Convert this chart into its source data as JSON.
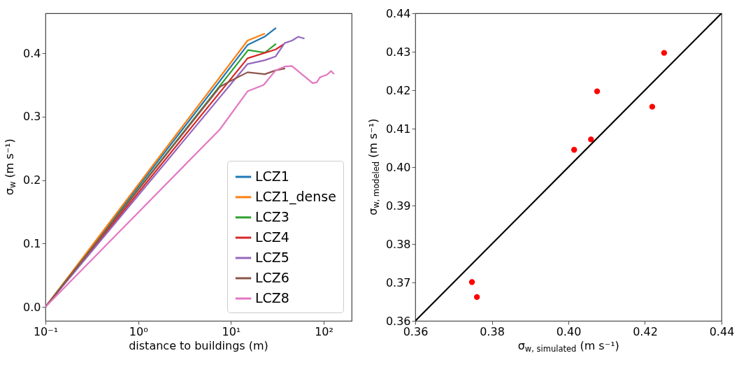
{
  "chart_data": [
    {
      "type": "line",
      "xlabel": "distance to buildings (m)",
      "ylabel": "σ$_{w}$ (m s⁻¹)",
      "log": "x",
      "xlim": [
        0.1,
        200
      ],
      "ylim": [
        -0.022,
        0.463
      ],
      "xticks": [
        {
          "value": 0.1,
          "label": "10⁻¹"
        },
        {
          "value": 1,
          "label": "10⁰"
        },
        {
          "value": 10,
          "label": "10¹"
        },
        {
          "value": 100,
          "label": "10²"
        }
      ],
      "yticks": [
        {
          "value": 0,
          "label": "0.0"
        },
        0.1,
        0.2,
        0.3,
        0.4
      ],
      "legend": "bottom right",
      "series": [
        {
          "name": "LCZ1",
          "color": "#1f77b4",
          "x": [
            0.1,
            15.1,
            23,
            30.6
          ],
          "values": [
            0,
            0.413,
            0.426,
            0.44
          ]
        },
        {
          "name": "LCZ1_dense",
          "color": "#ff7f0e",
          "x": [
            0.1,
            15.1,
            23.2
          ],
          "values": [
            0,
            0.42,
            0.431
          ]
        },
        {
          "name": "LCZ3",
          "color": "#2ca02c",
          "x": [
            0.1,
            15.3,
            23.2,
            30.6
          ],
          "values": [
            0,
            0.405,
            0.401,
            0.415
          ]
        },
        {
          "name": "LCZ4",
          "color": "#d62728",
          "x": [
            0.1,
            15.1,
            30.3,
            36.8
          ],
          "values": [
            0,
            0.392,
            0.406,
            0.414
          ]
        },
        {
          "name": "LCZ5",
          "color": "#9467bd",
          "x": [
            0.1,
            15.1,
            23.2,
            30.3,
            37.9,
            45.6,
            53,
            62
          ],
          "values": [
            0,
            0.383,
            0.389,
            0.395,
            0.416,
            0.42,
            0.426,
            0.423
          ]
        },
        {
          "name": "LCZ6",
          "color": "#8c564b",
          "x": [
            0.1,
            7.6,
            9.5,
            15.1,
            23.2,
            30.3,
            38.4
          ],
          "values": [
            0,
            0.347,
            0.355,
            0.37,
            0.367,
            0.373,
            0.376
          ]
        },
        {
          "name": "LCZ8",
          "color": "#e377c2",
          "x": [
            0.1,
            7.6,
            15.1,
            22.5,
            30.3,
            37.9,
            45.3,
            75.9,
            84,
            91,
            99,
            108,
            120,
            129
          ],
          "values": [
            0,
            0.28,
            0.34,
            0.35,
            0.373,
            0.379,
            0.38,
            0.353,
            0.354,
            0.362,
            0.364,
            0.366,
            0.372,
            0.367
          ]
        }
      ]
    },
    {
      "type": "scatter",
      "xlabel": "σ$_{w, simulated}$ (m s⁻¹)",
      "ylabel": "σ$_{w, modeled}$ (m s⁻¹)",
      "xlim": [
        0.36,
        0.44
      ],
      "ylim": [
        0.36,
        0.44
      ],
      "xticks": [
        0.36,
        0.38,
        {
          "value": 0.4,
          "label": "0.40"
        },
        0.42,
        0.44
      ],
      "yticks": [
        0.36,
        0.37,
        0.38,
        0.39,
        {
          "value": 0.4,
          "label": "0.40"
        },
        0.41,
        0.42,
        0.43,
        0.44
      ],
      "series": [
        {
          "color": "#ff0000",
          "marker": "circle",
          "x": [
            0.3748,
            0.3761,
            0.4015,
            0.4059,
            0.4075,
            0.4219,
            0.425
          ],
          "values": [
            0.3701,
            0.3662,
            0.4045,
            0.4072,
            0.4197,
            0.4157,
            0.4297
          ]
        },
        {
          "type": "line",
          "color": "#000000",
          "x": [
            0.36,
            0.44
          ],
          "values": [
            0.36,
            0.44
          ]
        }
      ]
    }
  ]
}
